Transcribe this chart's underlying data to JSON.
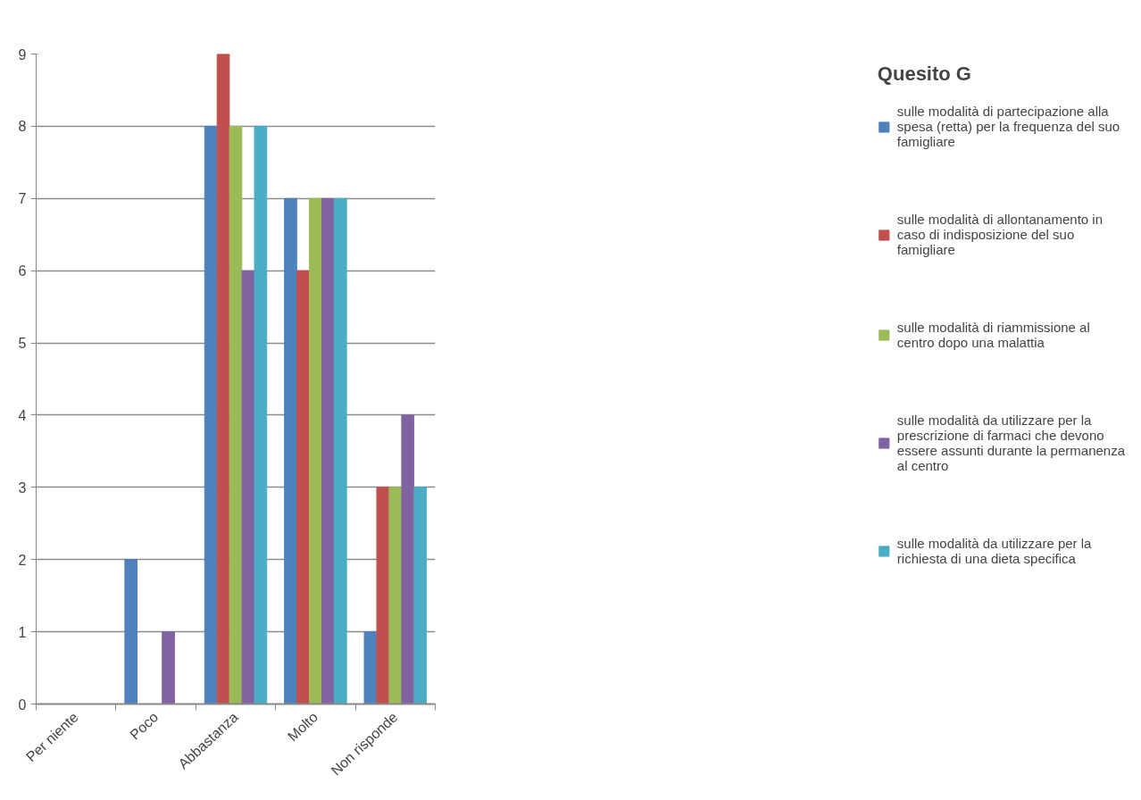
{
  "chart_data": {
    "type": "bar",
    "title": "Quesito G",
    "categories": [
      "Per niente",
      "Poco",
      "Abbastanza",
      "Molto",
      "Non risponde"
    ],
    "series": [
      {
        "name": "sulle modalità di partecipazione alla spesa (retta) per la frequenza del suo famigliare",
        "color": "#4f81bd",
        "values": [
          0,
          2,
          8,
          7,
          1
        ]
      },
      {
        "name": "sulle modalità di allontanamento in caso di indisposizione del suo famigliare",
        "color": "#c0504d",
        "values": [
          0,
          0,
          9,
          6,
          3
        ]
      },
      {
        "name": "sulle modalità di riammissione al centro dopo una malattia",
        "color": "#9bbb59",
        "values": [
          0,
          0,
          8,
          7,
          3
        ]
      },
      {
        "name": "sulle modalità da utilizzare per la prescrizione di farmaci che devono essere assunti durante la permanenza al centro",
        "color": "#8064a2",
        "values": [
          0,
          1,
          6,
          7,
          4
        ]
      },
      {
        "name": "sulle modalità da utilizzare per la richiesta di una dieta specifica",
        "color": "#4bacc6",
        "values": [
          0,
          0,
          8,
          7,
          3
        ]
      }
    ],
    "ylim": [
      0,
      9
    ],
    "yticks": [
      0,
      1,
      2,
      3,
      4,
      5,
      6,
      7,
      8,
      9
    ],
    "grid": "y",
    "legend": "right"
  }
}
